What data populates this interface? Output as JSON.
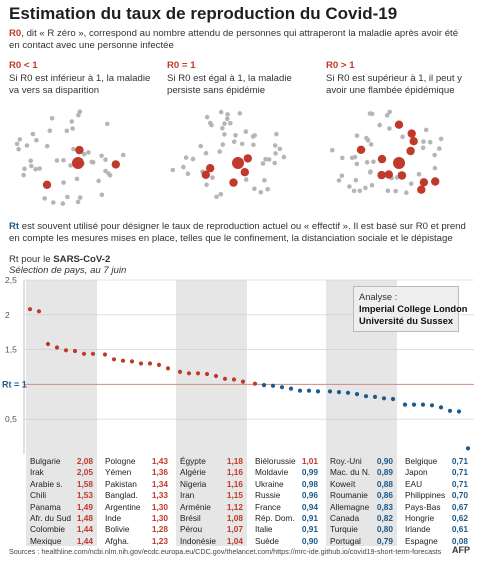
{
  "title": "Estimation du taux de reproduction du Covid-19",
  "intro": {
    "term": "R0",
    "text": ", dit « R zéro », correspond au nombre attendu de personnes qui attraperont la maladie après avoir été en contact avec une personne infectée"
  },
  "panels": [
    {
      "heading": "R0 < 1",
      "text": "Si R0 est inférieur à 1, la maladie va vers sa disparition"
    },
    {
      "heading": "R0 = 1",
      "text": "Si R0 est égal à 1, la maladie persiste sans épidémie"
    },
    {
      "heading": "R0 > 1",
      "text": "Si R0 est supérieur à 1, il peut y avoir une flambée épidémique"
    }
  ],
  "rt_note": {
    "term": "Rt",
    "text": " est souvent utilisé pour désigner le taux de reproduction actuel ou « effectif ». Il est basé sur R0 et prend en compte les mesures mises en place, telles que le confinement, la distanciation sociale et le dépistage"
  },
  "subtitle": {
    "prefix": "Rt pour le ",
    "virus": "SARS-CoV-2",
    "note": "Sélection de pays, au 7 juin"
  },
  "legend": {
    "title": "Analyse :",
    "line1": "Imperial College London",
    "line2": "Université du Sussex"
  },
  "rt_line_label": "Rt = 1",
  "colors": {
    "above": "#c0392b",
    "below": "#1d5a8c",
    "shade": "#e6e6e6",
    "grid": "#cccccc",
    "rt_line": "#d08a80"
  },
  "chart_data": {
    "type": "scatter",
    "title": "Rt pour le SARS-CoV-2",
    "ylim": [
      0,
      2.5
    ],
    "yticks": [
      "0,5",
      "1",
      "1,5",
      "2",
      "2,5"
    ],
    "ytick_values": [
      0.5,
      1,
      1.5,
      2,
      2.5
    ],
    "reference_line": 1,
    "groups": [
      {
        "countries": [
          "Bulgarie",
          "Irak",
          "Arabie s.",
          "Chili",
          "Panama",
          "Afr. du Sud",
          "Colombie",
          "Mexique"
        ],
        "values": [
          "2,08",
          "2,05",
          "1,58",
          "1,53",
          "1,49",
          "1,48",
          "1,44",
          "1,44"
        ],
        "shaded": true
      },
      {
        "countries": [
          "Pologne",
          "Yémen",
          "Pakistan",
          "Banglad.",
          "Argentine",
          "Inde",
          "Bolivie",
          "Afgha."
        ],
        "values": [
          "1,43",
          "1,36",
          "1,34",
          "1,33",
          "1,30",
          "1,30",
          "1,28",
          "1,23"
        ],
        "shaded": false
      },
      {
        "countries": [
          "Égypte",
          "Algérie",
          "Nigeria",
          "Iran",
          "Arménie",
          "Brésil",
          "Pérou",
          "Indonésie"
        ],
        "values": [
          "1,18",
          "1,16",
          "1,16",
          "1,15",
          "1,12",
          "1,08",
          "1,07",
          "1,04"
        ],
        "shaded": true
      },
      {
        "countries": [
          "Biélorussie",
          "Moldavie",
          "Ukraine",
          "Russie",
          "France",
          "Rép. Dom.",
          "Italie",
          "Suède"
        ],
        "values": [
          "1,01",
          "0,99",
          "0,98",
          "0,96",
          "0,94",
          "0,91",
          "0,91",
          "0,90"
        ],
        "shaded": false
      },
      {
        "countries": [
          "Roy.-Uni",
          "Mac. du N.",
          "Koweït",
          "Roumanie",
          "Allemagne",
          "Canada",
          "Turquie",
          "Portugal"
        ],
        "values": [
          "0,90",
          "0,89",
          "0,88",
          "0,86",
          "0,83",
          "0,82",
          "0,80",
          "0,79"
        ],
        "shaded": true
      },
      {
        "countries": [
          "Belgique",
          "Japon",
          "EAU",
          "Philippines",
          "Pays-Bas",
          "Hongrie",
          "Irlande",
          "Espagne"
        ],
        "values": [
          "0,71",
          "0,71",
          "0,71",
          "0,70",
          "0,67",
          "0,62",
          "0,61",
          "0,08"
        ],
        "shaded": false
      }
    ]
  },
  "footer": "Sources : healthline.com/ncbi.nlm.nih.gov/ecdc.europa.eu/CDC.gov/thelancet.com/https://mrc-ide.github.io/covid19-short-term-forecasts",
  "afp": "AFP"
}
